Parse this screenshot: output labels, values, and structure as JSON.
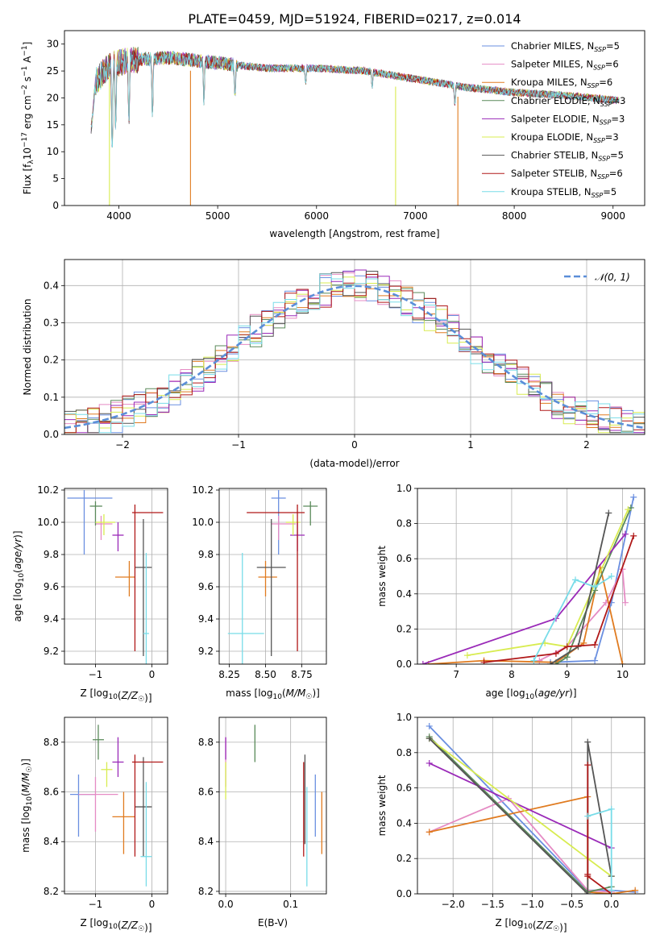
{
  "figure_title": "PLATE=0459, MJD=51924, FIBERID=0217, z=0.014",
  "series": [
    {
      "name": "Chabrier MILES, N_SSP=5",
      "label_main": "Chabrier MILES, N",
      "label_sub": "SSP",
      "label_tail": "=5",
      "color": "#6a8fe0"
    },
    {
      "name": "Salpeter MILES, N_SSP=6",
      "label_main": "Salpeter MILES, N",
      "label_sub": "SSP",
      "label_tail": "=6",
      "color": "#e58bc4"
    },
    {
      "name": "Kroupa MILES, N_SSP=6",
      "label_main": "Kroupa MILES, N",
      "label_sub": "SSP",
      "label_tail": "=6",
      "color": "#e07b20"
    },
    {
      "name": "Chabrier ELODIE, N_SSP=3",
      "label_main": "Chabrier ELODIE, N",
      "label_sub": "SSP",
      "label_tail": "=3",
      "color": "#5a8a5a"
    },
    {
      "name": "Salpeter ELODIE, N_SSP=3",
      "label_main": "Salpeter ELODIE, N",
      "label_sub": "SSP",
      "label_tail": "=3",
      "color": "#9a2ab8"
    },
    {
      "name": "Kroupa ELODIE, N_SSP=3",
      "label_main": "Kroupa ELODIE, N",
      "label_sub": "SSP",
      "label_tail": "=3",
      "color": "#d8ec50"
    },
    {
      "name": "Chabrier STELIB, N_SSP=5",
      "label_main": "Chabrier STELIB, N",
      "label_sub": "SSP",
      "label_tail": "=5",
      "color": "#555555"
    },
    {
      "name": "Salpeter STELIB, N_SSP=6",
      "label_main": "Salpeter STELIB, N",
      "label_sub": "SSP",
      "label_tail": "=6",
      "color": "#b01818"
    },
    {
      "name": "Kroupa STELIB, N_SSP=5",
      "label_main": "Kroupa STELIB, N",
      "label_sub": "SSP",
      "label_tail": "=5",
      "color": "#78dce8"
    }
  ],
  "chart_data": [
    {
      "id": "spectrum",
      "type": "line",
      "xlabel": "wavelength [Angstrom, rest frame]",
      "ylabel": "Flux [f_λ10^-17 erg cm^-2 s^-1 A^-1]",
      "ylabel_parts": {
        "a": "Flux [f",
        "b": "λ",
        "c": "10",
        "d": "−17",
        "e": " erg cm",
        "f": "−2",
        "g": " s",
        "h": "−1",
        "i": " A",
        "j": "−1",
        "k": "]"
      },
      "xlim": [
        3450,
        9320
      ],
      "ylim": [
        0,
        32.5
      ],
      "xticks": [
        4000,
        5000,
        6000,
        7000,
        8000,
        9000
      ],
      "yticks": [
        0,
        5,
        10,
        15,
        20,
        25,
        30
      ],
      "x_range_data": [
        3720,
        9060
      ],
      "continuum_points": [
        [
          3720,
          22
        ],
        [
          3900,
          26
        ],
        [
          4100,
          27
        ],
        [
          4500,
          27.5
        ],
        [
          5000,
          26.5
        ],
        [
          5500,
          25.5
        ],
        [
          6000,
          25.5
        ],
        [
          6500,
          25
        ],
        [
          7000,
          23.5
        ],
        [
          7500,
          22
        ],
        [
          8000,
          21
        ],
        [
          8500,
          20.5
        ],
        [
          9060,
          19.5
        ]
      ],
      "absorption_lines": [
        [
          3933,
          6.5
        ],
        [
          3968,
          12
        ],
        [
          4102,
          13
        ],
        [
          4340,
          14.5
        ],
        [
          4861,
          18
        ],
        [
          5175,
          19
        ],
        [
          5890,
          22
        ],
        [
          6563,
          21.5
        ],
        [
          7400,
          18
        ]
      ],
      "spikes": [
        [
          3905,
          0
        ],
        [
          4725,
          0
        ],
        [
          6800,
          0
        ],
        [
          7430,
          0
        ]
      ],
      "legend": "top-right"
    },
    {
      "id": "residuals",
      "type": "line",
      "xlabel": "(data-model)/error",
      "ylabel": "Normed distribution",
      "xlim": [
        -2.5,
        2.5
      ],
      "ylim": [
        0,
        0.47
      ],
      "xticks": [
        -2,
        -1,
        0,
        1,
        2
      ],
      "yticks": [
        0.0,
        0.1,
        0.2,
        0.3,
        0.4
      ],
      "bin_width": 0.1,
      "reference_curve": {
        "name": "N(0,1)",
        "label_math": "𝒩(0, 1)",
        "mean": 0,
        "sigma": 1,
        "color": "#5b8ed8",
        "style": "dashed"
      },
      "grid": true,
      "legend": "top-right"
    },
    {
      "id": "age_vs_Z",
      "type": "scatter",
      "xlabel": "Z [log10(Z/Z☉)]",
      "ylabel": "age  [log10(age/yr)]",
      "xlim": [
        -1.55,
        0.28
      ],
      "ylim": [
        9.12,
        10.21
      ],
      "xticks": [
        -1,
        0
      ],
      "yticks": [
        9.2,
        9.4,
        9.6,
        9.8,
        10.0,
        10.2
      ],
      "points": [
        {
          "series": 0,
          "x": -1.2,
          "y": 10.15,
          "xerr": [
            0.3,
            0.5
          ],
          "yerr": [
            0.35,
            0.05
          ]
        },
        {
          "series": 1,
          "x": -0.9,
          "y": 9.99,
          "xerr": [
            0.1,
            0.2
          ],
          "yerr": [
            0.1,
            0.05
          ]
        },
        {
          "series": 2,
          "x": -0.4,
          "y": 9.66,
          "xerr": [
            0.25,
            0.1
          ],
          "yerr": [
            0.12,
            0.1
          ]
        },
        {
          "series": 3,
          "x": -1.0,
          "y": 10.1,
          "xerr": [
            0.1,
            0.12
          ],
          "yerr": [
            0.12,
            0.03
          ]
        },
        {
          "series": 4,
          "x": -0.6,
          "y": 9.92,
          "xerr": [
            0.1,
            0.1
          ],
          "yerr": [
            0.1,
            0.08
          ]
        },
        {
          "series": 5,
          "x": -0.85,
          "y": 10.0,
          "xerr": [
            0.15,
            0.2
          ],
          "yerr": [
            0.08,
            0.05
          ]
        },
        {
          "series": 6,
          "x": -0.15,
          "y": 9.72,
          "xerr": [
            0.15,
            0.15
          ],
          "yerr": [
            0.55,
            0.3
          ]
        },
        {
          "series": 7,
          "x": -0.3,
          "y": 10.06,
          "xerr": [
            0.05,
            0.5
          ],
          "yerr": [
            0.86,
            0.05
          ]
        },
        {
          "series": 8,
          "x": -0.1,
          "y": 9.31,
          "xerr": [
            0.05,
            0.05
          ],
          "yerr": [
            0.2,
            0.5
          ]
        }
      ]
    },
    {
      "id": "age_vs_mass",
      "type": "scatter",
      "xlabel": "mass [log10(M/M☉)]",
      "ylabel": "",
      "xlim": [
        8.18,
        8.92
      ],
      "ylim": [
        9.12,
        10.21
      ],
      "xticks": [
        8.25,
        8.5,
        8.75
      ],
      "yticks": [
        9.2,
        9.4,
        9.6,
        9.8,
        10.0,
        10.2
      ],
      "points": [
        {
          "series": 0,
          "x": 8.59,
          "y": 10.15,
          "xerr": [
            0.05,
            0.05
          ],
          "yerr": [
            0.35,
            0.05
          ]
        },
        {
          "series": 1,
          "x": 8.59,
          "y": 9.99,
          "xerr": [
            0.05,
            0.12
          ],
          "yerr": [
            0.1,
            0.05
          ]
        },
        {
          "series": 2,
          "x": 8.5,
          "y": 9.66,
          "xerr": [
            0.05,
            0.08
          ],
          "yerr": [
            0.12,
            0.1
          ]
        },
        {
          "series": 3,
          "x": 8.81,
          "y": 10.1,
          "xerr": [
            0.05,
            0.05
          ],
          "yerr": [
            0.12,
            0.03
          ]
        },
        {
          "series": 4,
          "x": 8.72,
          "y": 9.92,
          "xerr": [
            0.05,
            0.05
          ],
          "yerr": [
            0.1,
            0.08
          ]
        },
        {
          "series": 5,
          "x": 8.69,
          "y": 10.0,
          "xerr": [
            0.05,
            0.05
          ],
          "yerr": [
            0.08,
            0.05
          ]
        },
        {
          "series": 6,
          "x": 8.54,
          "y": 9.72,
          "xerr": [
            0.1,
            0.1
          ],
          "yerr": [
            0.55,
            0.3
          ]
        },
        {
          "series": 7,
          "x": 8.72,
          "y": 10.06,
          "xerr": [
            0.35,
            0.05
          ],
          "yerr": [
            0.86,
            0.05
          ]
        },
        {
          "series": 8,
          "x": 8.34,
          "y": 9.31,
          "xerr": [
            0.1,
            0.15
          ],
          "yerr": [
            0.2,
            0.5
          ]
        }
      ]
    },
    {
      "id": "weight_vs_age",
      "type": "line",
      "xlabel": "age  [log10(age/yr)]",
      "ylabel": "mass weight",
      "xlim": [
        6.3,
        10.4
      ],
      "ylim": [
        0,
        1.0
      ],
      "xticks": [
        7,
        8,
        9,
        10
      ],
      "yticks": [
        0.0,
        0.2,
        0.4,
        0.6,
        0.8,
        1.0
      ],
      "grid": true,
      "lines": [
        {
          "series": 0,
          "x": [
            8.7,
            9.5,
            9.8,
            10.2
          ],
          "y": [
            0.01,
            0.02,
            0.35,
            0.95
          ]
        },
        {
          "series": 1,
          "x": [
            8.5,
            9.0,
            9.7,
            10.0,
            10.05
          ],
          "y": [
            0.02,
            0.1,
            0.35,
            0.54,
            0.35
          ]
        },
        {
          "series": 2,
          "x": [
            6.5,
            7.5,
            8.8,
            9.3,
            9.6,
            10.0
          ],
          "y": [
            0.0,
            0.02,
            0.01,
            0.12,
            0.55,
            0.0
          ]
        },
        {
          "series": 3,
          "x": [
            8.8,
            9.0,
            9.5,
            10.15
          ],
          "y": [
            0.0,
            0.04,
            0.42,
            0.89
          ]
        },
        {
          "series": 4,
          "x": [
            6.4,
            8.8,
            10.05
          ],
          "y": [
            0.0,
            0.26,
            0.74
          ]
        },
        {
          "series": 5,
          "x": [
            7.2,
            8.6,
            9.0,
            10.1
          ],
          "y": [
            0.05,
            0.12,
            0.1,
            0.88
          ]
        },
        {
          "series": 6,
          "x": [
            8.7,
            9.2,
            9.75
          ],
          "y": [
            0.0,
            0.1,
            0.86
          ]
        },
        {
          "series": 7,
          "x": [
            7.5,
            8.8,
            9.0,
            9.5,
            10.2
          ],
          "y": [
            0.01,
            0.06,
            0.1,
            0.11,
            0.73
          ]
        },
        {
          "series": 8,
          "x": [
            8.4,
            9.15,
            9.5,
            9.8
          ],
          "y": [
            0.02,
            0.48,
            0.44,
            0.5
          ]
        }
      ]
    },
    {
      "id": "mass_vs_Z",
      "type": "scatter",
      "xlabel": "Z [log10(Z/Z☉)]",
      "ylabel": "mass [log10(M/M☉)]",
      "xlim": [
        -1.55,
        0.28
      ],
      "ylim": [
        8.19,
        8.9
      ],
      "xticks": [
        -1,
        0
      ],
      "yticks": [
        8.2,
        8.4,
        8.6,
        8.8
      ],
      "points": [
        {
          "series": 0,
          "x": -1.3,
          "y": 8.59,
          "xerr": [
            0.15,
            0.3
          ],
          "yerr": [
            0.17,
            0.08
          ]
        },
        {
          "series": 1,
          "x": -1.0,
          "y": 8.59,
          "xerr": [
            0.3,
            0.4
          ],
          "yerr": [
            0.15,
            0.07
          ]
        },
        {
          "series": 2,
          "x": -0.5,
          "y": 8.5,
          "xerr": [
            0.2,
            0.2
          ],
          "yerr": [
            0.15,
            0.1
          ]
        },
        {
          "series": 3,
          "x": -0.95,
          "y": 8.81,
          "xerr": [
            0.1,
            0.1
          ],
          "yerr": [
            0.08,
            0.06
          ]
        },
        {
          "series": 4,
          "x": -0.6,
          "y": 8.72,
          "xerr": [
            0.1,
            0.1
          ],
          "yerr": [
            0.06,
            0.1
          ]
        },
        {
          "series": 5,
          "x": -0.8,
          "y": 8.69,
          "xerr": [
            0.1,
            0.1
          ],
          "yerr": [
            0.07,
            0.03
          ]
        },
        {
          "series": 6,
          "x": -0.15,
          "y": 8.54,
          "xerr": [
            0.15,
            0.15
          ],
          "yerr": [
            0.2,
            0.2
          ]
        },
        {
          "series": 7,
          "x": -0.3,
          "y": 8.72,
          "xerr": [
            0.05,
            0.5
          ],
          "yerr": [
            0.38,
            0.03
          ]
        },
        {
          "series": 8,
          "x": -0.1,
          "y": 8.34,
          "xerr": [
            0.1,
            0.1
          ],
          "yerr": [
            0.12,
            0.3
          ]
        }
      ]
    },
    {
      "id": "mass_vs_EBV",
      "type": "scatter",
      "xlabel": "E(B-V)",
      "ylabel": "",
      "xlim": [
        -0.01,
        0.155
      ],
      "ylim": [
        8.19,
        8.9
      ],
      "xticks": [
        0.0,
        0.1
      ],
      "yticks": [
        8.2,
        8.4,
        8.6,
        8.8
      ],
      "points": [
        {
          "series": 0,
          "x": 0.138,
          "y": 8.54,
          "xerr": [
            0,
            0
          ],
          "yerr": [
            0.12,
            0.13
          ]
        },
        {
          "series": 1,
          "x": 0.0,
          "y": 8.72,
          "xerr": [
            0,
            0
          ],
          "yerr": [
            0.1,
            0.1
          ]
        },
        {
          "series": 2,
          "x": 0.148,
          "y": 8.5,
          "xerr": [
            0,
            0
          ],
          "yerr": [
            0.15,
            0.1
          ]
        },
        {
          "series": 3,
          "x": 0.045,
          "y": 8.81,
          "xerr": [
            0,
            0
          ],
          "yerr": [
            0.09,
            0.06
          ]
        },
        {
          "series": 4,
          "x": 0.0,
          "y": 8.79,
          "xerr": [
            0,
            0
          ],
          "yerr": [
            0.06,
            0.03
          ]
        },
        {
          "series": 5,
          "x": 0.0,
          "y": 8.65,
          "xerr": [
            0,
            0
          ],
          "yerr": [
            0.08,
            0.07
          ]
        },
        {
          "series": 6,
          "x": 0.122,
          "y": 8.59,
          "xerr": [
            0,
            0
          ],
          "yerr": [
            0.2,
            0.16
          ]
        },
        {
          "series": 7,
          "x": 0.12,
          "y": 8.54,
          "xerr": [
            0,
            0
          ],
          "yerr": [
            0.2,
            0.18
          ]
        },
        {
          "series": 8,
          "x": 0.125,
          "y": 8.42,
          "xerr": [
            0,
            0
          ],
          "yerr": [
            0.2,
            0.2
          ]
        }
      ]
    },
    {
      "id": "weight_vs_Z",
      "type": "line",
      "xlabel": "Z [log10(Z/Z☉)]",
      "ylabel": "mass weight",
      "xlim": [
        -2.45,
        0.42
      ],
      "ylim": [
        0,
        1.0
      ],
      "xticks": [
        -2.0,
        -1.5,
        -1.0,
        -0.5,
        0.0
      ],
      "yticks": [
        0.0,
        0.2,
        0.4,
        0.6,
        0.8,
        1.0
      ],
      "grid": true,
      "lines": [
        {
          "series": 0,
          "x": [
            -2.3,
            -0.3,
            0.0,
            0.3
          ],
          "y": [
            0.95,
            0.02,
            0.02,
            0.01
          ]
        },
        {
          "series": 1,
          "x": [
            -2.3,
            -1.3,
            -0.3,
            0.0
          ],
          "y": [
            0.35,
            0.54,
            0.02,
            0.01
          ]
        },
        {
          "series": 2,
          "x": [
            -2.3,
            -0.3,
            -0.3,
            0.0,
            0.3
          ],
          "y": [
            0.35,
            0.55,
            0.01,
            0.0,
            0.02
          ]
        },
        {
          "series": 3,
          "x": [
            -2.3,
            -0.3,
            0.0
          ],
          "y": [
            0.89,
            0.01,
            0.04
          ]
        },
        {
          "series": 4,
          "x": [
            -2.3,
            0.0
          ],
          "y": [
            0.74,
            0.26
          ]
        },
        {
          "series": 5,
          "x": [
            -2.3,
            -0.3,
            0.0
          ],
          "y": [
            0.88,
            0.2,
            0.1
          ]
        },
        {
          "series": 6,
          "x": [
            -2.3,
            -0.3,
            -0.3,
            0.0
          ],
          "y": [
            0.88,
            0.0,
            0.86,
            0.1
          ]
        },
        {
          "series": 7,
          "x": [
            -0.3,
            -0.3,
            -0.3,
            0.0
          ],
          "y": [
            0.73,
            0.11,
            0.1,
            0.0
          ]
        },
        {
          "series": 8,
          "x": [
            -0.3,
            0.0,
            0.0
          ],
          "y": [
            0.44,
            0.48,
            0.02
          ]
        }
      ]
    }
  ]
}
